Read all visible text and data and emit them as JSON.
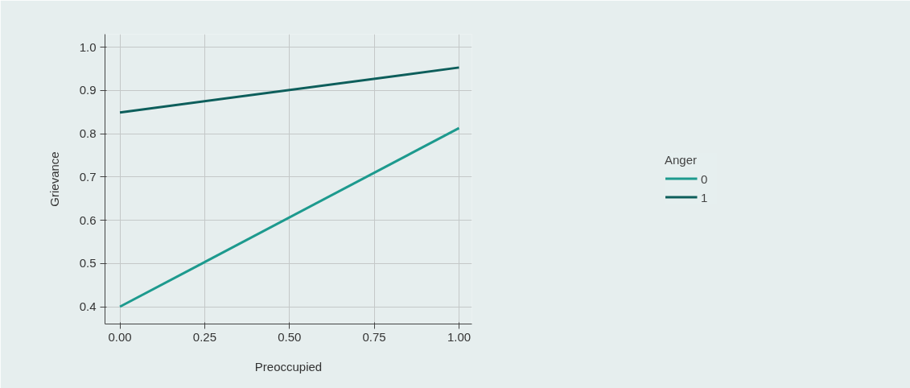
{
  "chart_data": {
    "type": "line",
    "xlabel": "Preoccupied",
    "ylabel": "Grievance",
    "legend_title": "Anger",
    "x": [
      0,
      1
    ],
    "series": [
      {
        "name": "0",
        "color": "#1d9a8e",
        "values": [
          0.4,
          0.813
        ]
      },
      {
        "name": "1",
        "color": "#0d5e5b",
        "values": [
          0.849,
          0.953
        ]
      }
    ],
    "xlim": [
      -0.044,
      1.038
    ],
    "ylim": [
      0.36,
      1.03
    ],
    "xticks": [
      {
        "value": 0,
        "label": "0.00"
      },
      {
        "value": 0.25,
        "label": "0.25"
      },
      {
        "value": 0.5,
        "label": "0.50"
      },
      {
        "value": 0.75,
        "label": "0.75"
      },
      {
        "value": 1,
        "label": "1.00"
      }
    ],
    "yticks": [
      0.4,
      0.5,
      0.6,
      0.7,
      0.8,
      0.9,
      {
        "value": 1.0,
        "label": "1.0"
      }
    ],
    "grid": true,
    "legend": "right",
    "marker": "none",
    "line_style": "solid"
  }
}
